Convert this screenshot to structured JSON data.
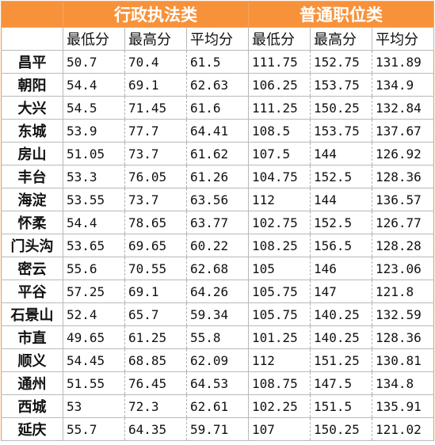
{
  "headers": {
    "corner": "",
    "group_admin": "行政执法类",
    "group_general": "普通职位类",
    "admin_min": "最低分",
    "admin_max": "最高分",
    "admin_avg": "平均分",
    "general_min": "最低分",
    "general_max": "最高分",
    "general_avg": "平均分"
  },
  "rows": [
    {
      "district": "昌平",
      "admin": [
        "50.7",
        "70.4",
        "61.5"
      ],
      "general": [
        "111.75",
        "152.75",
        "131.89"
      ]
    },
    {
      "district": "朝阳",
      "admin": [
        "54.4",
        "69.1",
        "62.63"
      ],
      "general": [
        "106.25",
        "153.75",
        "134.9"
      ]
    },
    {
      "district": "大兴",
      "admin": [
        "54.5",
        "71.45",
        "61.6"
      ],
      "general": [
        "111.25",
        "150.25",
        "132.84"
      ]
    },
    {
      "district": "东城",
      "admin": [
        "53.9",
        "77.7",
        "64.41"
      ],
      "general": [
        "108.5",
        "153.75",
        "137.67"
      ]
    },
    {
      "district": "房山",
      "admin": [
        "51.05",
        "73.7",
        "61.62"
      ],
      "general": [
        "107.5",
        "144",
        "126.92"
      ]
    },
    {
      "district": "丰台",
      "admin": [
        "53.3",
        "76.05",
        "61.26"
      ],
      "general": [
        "104.75",
        "152.5",
        "128.36"
      ]
    },
    {
      "district": "海淀",
      "admin": [
        "53.55",
        "73.7",
        "63.56"
      ],
      "general": [
        "112",
        "144",
        "136.57"
      ]
    },
    {
      "district": "怀柔",
      "admin": [
        "54.4",
        "78.65",
        "63.77"
      ],
      "general": [
        "102.75",
        "152.5",
        "126.77"
      ]
    },
    {
      "district": "门头沟",
      "admin": [
        "53.65",
        "69.65",
        "60.22"
      ],
      "general": [
        "108.25",
        "156.5",
        "128.28"
      ]
    },
    {
      "district": "密云",
      "admin": [
        "55.6",
        "70.55",
        "62.68"
      ],
      "general": [
        "105",
        "146",
        "123.06"
      ]
    },
    {
      "district": "平谷",
      "admin": [
        "57.25",
        "69.1",
        "64.26"
      ],
      "general": [
        "105.75",
        "147",
        "121.8"
      ]
    },
    {
      "district": "石景山",
      "admin": [
        "52.4",
        "65.7",
        "59.34"
      ],
      "general": [
        "105.75",
        "140.25",
        "132.59"
      ]
    },
    {
      "district": "市直",
      "admin": [
        "49.65",
        "61.25",
        "55.8"
      ],
      "general": [
        "101.25",
        "140.25",
        "128.36"
      ]
    },
    {
      "district": "顺义",
      "admin": [
        "54.45",
        "68.85",
        "62.09"
      ],
      "general": [
        "112",
        "151.25",
        "130.81"
      ]
    },
    {
      "district": "通州",
      "admin": [
        "51.55",
        "76.45",
        "64.53"
      ],
      "general": [
        "108.75",
        "147.5",
        "134.8"
      ]
    },
    {
      "district": "西城",
      "admin": [
        "53",
        "72.3",
        "62.61"
      ],
      "general": [
        "102.25",
        "151.5",
        "135.91"
      ]
    },
    {
      "district": "延庆",
      "admin": [
        "55.7",
        "64.35",
        "59.71"
      ],
      "general": [
        "107",
        "150.25",
        "121.02"
      ]
    }
  ],
  "colors": {
    "header_bg": "#f8923a",
    "header_text": "#ffffff",
    "grid": "#b9b9b9"
  }
}
